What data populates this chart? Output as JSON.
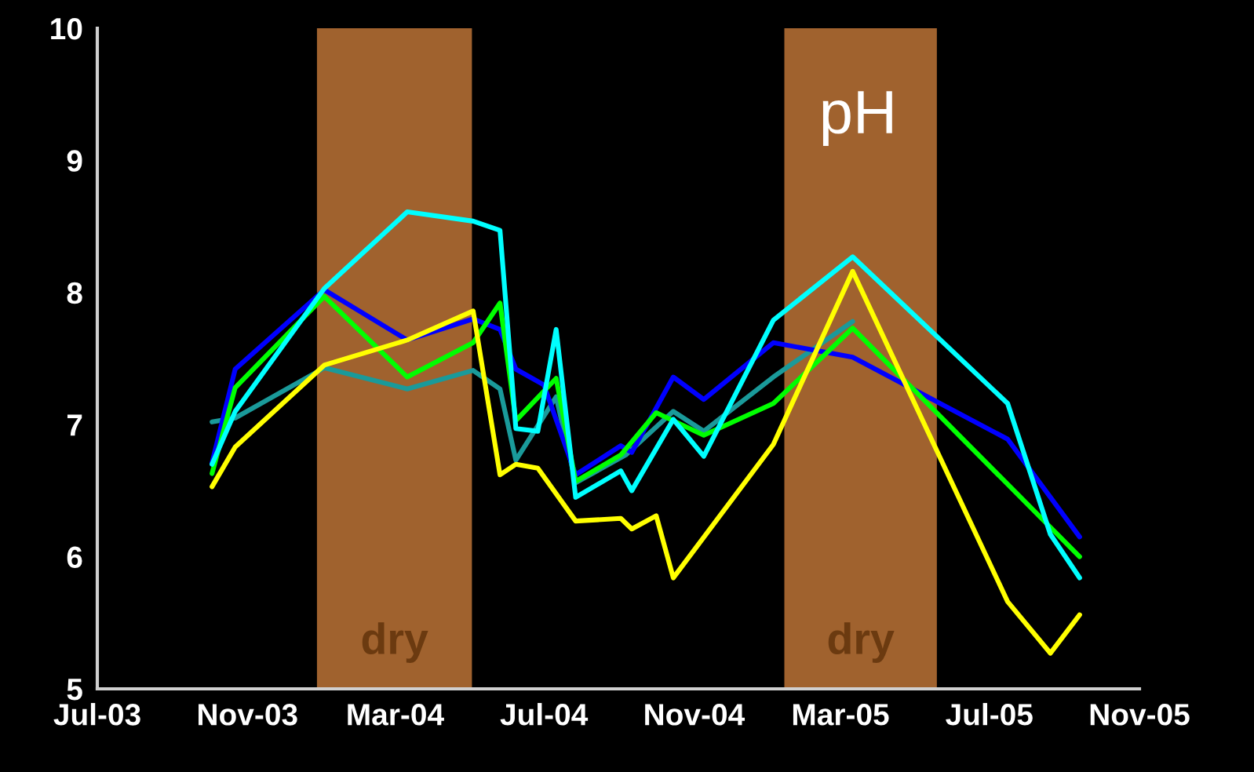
{
  "chart_data": {
    "type": "line",
    "annotations": [
      "pH"
    ],
    "xlim": [
      "2003-07-01",
      "2005-11-01"
    ],
    "xticks": [
      {
        "value": "2003-07-01",
        "label": "Jul-03"
      },
      {
        "value": "2003-11-01",
        "label": "Nov-03"
      },
      {
        "value": "2004-03-01",
        "label": "Mar-04"
      },
      {
        "value": "2004-07-01",
        "label": "Jul-04"
      },
      {
        "value": "2004-11-01",
        "label": "Nov-04"
      },
      {
        "value": "2005-03-01",
        "label": "Mar-05"
      },
      {
        "value": "2005-07-01",
        "label": "Jul-05"
      },
      {
        "value": "2005-11-01",
        "label": "Nov-05"
      }
    ],
    "ylim": [
      5,
      10
    ],
    "yticks": [
      5,
      6,
      7,
      8,
      9,
      10
    ],
    "grid": false,
    "legend": false,
    "marker": "none",
    "line_style": "solid",
    "bands": [
      {
        "axis": "x",
        "from": "2003-12-28",
        "to": "2004-05-03",
        "label": "dry",
        "color": "#a0622e"
      },
      {
        "axis": "x",
        "from": "2005-01-14",
        "to": "2005-05-19",
        "label": "dry",
        "color": "#a0622e"
      }
    ],
    "series": [
      {
        "color": "#1a9a9a",
        "x": [
          "2003-10-03",
          "2003-10-22",
          "2004-01-03",
          "2004-03-11",
          "2004-05-04",
          "2004-05-26",
          "2004-06-08",
          "2004-07-11",
          "2004-07-27",
          "2004-09-06",
          "2004-10-15",
          "2004-11-09",
          "2005-01-05",
          "2005-03-11"
        ],
        "values": [
          7.02,
          7.05,
          7.43,
          7.27,
          7.41,
          7.27,
          6.73,
          7.21,
          6.56,
          6.77,
          7.1,
          6.95,
          7.36,
          7.78
        ]
      },
      {
        "color": "#0000ff",
        "x": [
          "2003-10-03",
          "2003-10-22",
          "2004-01-03",
          "2004-03-11",
          "2004-05-04",
          "2004-05-26",
          "2004-06-08",
          "2004-07-01",
          "2004-07-27",
          "2004-09-02",
          "2004-09-11",
          "2004-10-15",
          "2004-11-09",
          "2005-01-05",
          "2005-03-11",
          "2005-07-16",
          "2005-09-13"
        ],
        "values": [
          6.71,
          7.42,
          8.02,
          7.64,
          7.8,
          7.72,
          7.42,
          7.3,
          6.62,
          6.84,
          6.79,
          7.36,
          7.19,
          7.62,
          7.51,
          6.89,
          6.15
        ]
      },
      {
        "color": "#00ff00",
        "x": [
          "2003-10-03",
          "2003-10-22",
          "2004-01-03",
          "2004-03-11",
          "2004-05-04",
          "2004-05-26",
          "2004-06-08",
          "2004-07-11",
          "2004-07-27",
          "2004-09-02",
          "2004-10-01",
          "2004-11-09",
          "2005-01-05",
          "2005-03-11",
          "2005-09-13"
        ],
        "values": [
          6.63,
          7.28,
          7.97,
          7.36,
          7.62,
          7.92,
          7.03,
          7.35,
          6.57,
          6.77,
          7.09,
          6.92,
          7.16,
          7.73,
          6.0
        ]
      },
      {
        "color": "#00ffff",
        "x": [
          "2003-10-03",
          "2003-10-22",
          "2004-01-03",
          "2004-03-11",
          "2004-05-04",
          "2004-05-26",
          "2004-06-08",
          "2004-06-26",
          "2004-07-11",
          "2004-07-27",
          "2004-09-02",
          "2004-09-11",
          "2004-10-15",
          "2004-11-09",
          "2005-01-05",
          "2005-03-11",
          "2005-07-16",
          "2005-08-20",
          "2005-09-13"
        ],
        "values": [
          6.7,
          7.1,
          8.03,
          8.61,
          8.54,
          8.47,
          6.97,
          6.95,
          7.72,
          6.45,
          6.65,
          6.5,
          7.04,
          6.76,
          7.79,
          8.27,
          7.16,
          6.17,
          5.84
        ]
      },
      {
        "color": "#ffff00",
        "x": [
          "2003-10-03",
          "2003-10-22",
          "2004-01-03",
          "2004-03-11",
          "2004-05-04",
          "2004-05-26",
          "2004-06-08",
          "2004-06-26",
          "2004-07-27",
          "2004-09-02",
          "2004-09-11",
          "2004-10-01",
          "2004-10-15",
          "2005-01-05",
          "2005-03-11",
          "2005-07-16",
          "2005-08-20",
          "2005-09-13"
        ],
        "values": [
          6.53,
          6.83,
          7.45,
          7.64,
          7.86,
          6.62,
          6.7,
          6.67,
          6.27,
          6.29,
          6.21,
          6.31,
          5.84,
          6.85,
          8.16,
          5.66,
          5.27,
          5.56
        ]
      }
    ]
  }
}
